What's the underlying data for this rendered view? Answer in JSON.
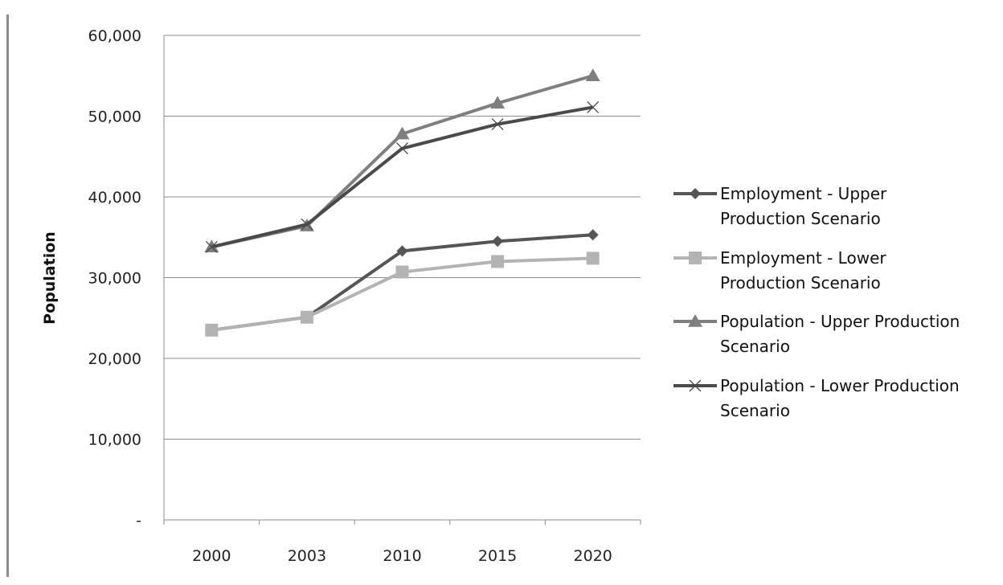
{
  "chart_data": {
    "type": "line",
    "title": "",
    "xlabel": "",
    "ylabel": "Population",
    "categories": [
      "2000",
      "2003",
      "2010",
      "2015",
      "2020"
    ],
    "y_tick_labels": [
      "-",
      "10,000",
      "20,000",
      "30,000",
      "40,000",
      "50,000",
      "60,000"
    ],
    "ylim": [
      0,
      60000
    ],
    "grid": true,
    "legend_position": "right",
    "series": [
      {
        "name": "Employment - Upper Production Scenario",
        "legend_lines": [
          "Employment - Upper",
          "Production Scenario"
        ],
        "values": [
          23500,
          25100,
          33300,
          34500,
          35300
        ],
        "color": "#555555",
        "marker": "diamond"
      },
      {
        "name": "Employment - Lower Production Scenario",
        "legend_lines": [
          "Employment - Lower",
          "Production Scenario"
        ],
        "values": [
          23500,
          25100,
          30700,
          32000,
          32400
        ],
        "color": "#b3b3b3",
        "marker": "square"
      },
      {
        "name": "Population - Upper Production Scenario",
        "legend_lines": [
          "Population - Upper Production",
          "Scenario"
        ],
        "values": [
          33800,
          36400,
          47800,
          51600,
          55000
        ],
        "color": "#7f7f7f",
        "marker": "triangle"
      },
      {
        "name": "Population - Lower Production Scenario",
        "legend_lines": [
          "Population - Lower Production",
          "Scenario"
        ],
        "values": [
          33800,
          36600,
          46000,
          49000,
          51100
        ],
        "color": "#4a4a4a",
        "marker": "x"
      }
    ]
  }
}
